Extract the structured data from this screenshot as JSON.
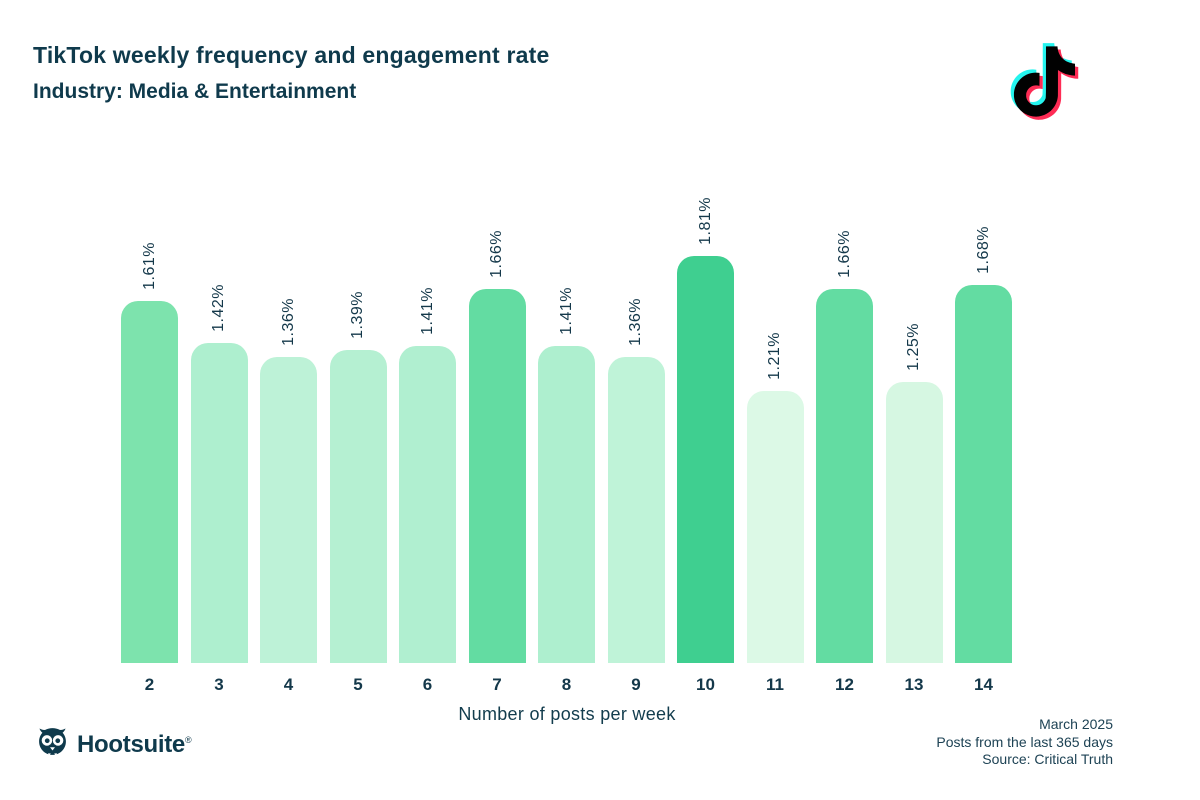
{
  "header": {
    "title": "TikTok weekly frequency and engagement rate",
    "subtitle": "Industry: Media & Entertainment"
  },
  "chart_data": {
    "type": "bar",
    "title": "TikTok weekly frequency and engagement rate",
    "subtitle": "Industry: Media & Entertainment",
    "xlabel": "Number of posts per week",
    "categories": [
      "2",
      "3",
      "4",
      "5",
      "6",
      "7",
      "8",
      "9",
      "10",
      "11",
      "12",
      "13",
      "14"
    ],
    "values": [
      1.61,
      1.42,
      1.36,
      1.39,
      1.41,
      1.66,
      1.41,
      1.36,
      1.81,
      1.21,
      1.66,
      1.25,
      1.68
    ],
    "labels": [
      "1.61%",
      "1.42%",
      "1.36%",
      "1.39%",
      "1.41%",
      "1.66%",
      "1.41%",
      "1.36%",
      "1.81%",
      "1.21%",
      "1.66%",
      "1.25%",
      "1.68%"
    ],
    "bar_colors": [
      "#7de3ad",
      "#aeefcf",
      "#bdf2d7",
      "#b5f0d2",
      "#b0efd0",
      "#63dca2",
      "#aeefcf",
      "#bff3d8",
      "#3fcf90",
      "#dcf9e6",
      "#63dca2",
      "#d6f7e2",
      "#63dca2"
    ],
    "value_label_rotation": -90,
    "grid": false,
    "legend": false,
    "ylim": [
      0,
      2.0
    ]
  },
  "footer": {
    "brand": "Hootsuite",
    "reg": "®",
    "lines": [
      "March 2025",
      "Posts from the last 365 days",
      "Source: Critical Truth"
    ]
  },
  "icons": {
    "tiktok": "tiktok-note-icon",
    "hootsuite": "hootsuite-owl-icon"
  },
  "colors": {
    "heading": "#0f3a4c",
    "tick_text": "#14384a",
    "footer_text": "#1d4254",
    "tiktok_cyan": "#25f4ee",
    "tiktok_pink": "#fe2c55",
    "tiktok_black": "#010101"
  }
}
